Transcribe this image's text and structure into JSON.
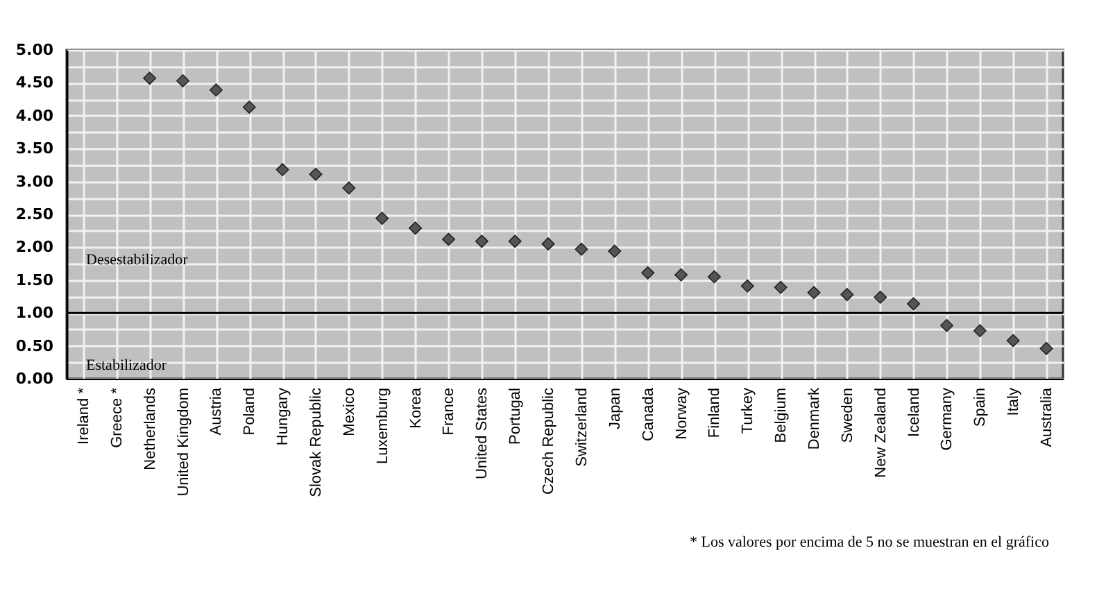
{
  "chart_data": {
    "type": "scatter",
    "marker": "diamond",
    "grid": true,
    "categories": [
      "Ireland *",
      "Greece *",
      "Netherlands",
      "United Kingdom",
      "Austria",
      "Poland",
      "Hungary",
      "Slovak Republic",
      "Mexico",
      "Luxemburg",
      "Korea",
      "France",
      "United States",
      "Portugal",
      "Czech Republic",
      "Switzerland",
      "Japan",
      "Canada",
      "Norway",
      "Finland",
      "Turkey",
      "Belgium",
      "Denmark",
      "Sweden",
      "New Zealand",
      "Iceland",
      "Germany",
      "Spain",
      "Italy",
      "Australia"
    ],
    "series": [
      {
        "color": "#555555",
        "values": [
          null,
          null,
          4.57,
          4.53,
          4.39,
          4.13,
          3.18,
          3.11,
          2.9,
          2.44,
          2.29,
          2.12,
          2.09,
          2.09,
          2.05,
          1.97,
          1.94,
          1.61,
          1.58,
          1.55,
          1.41,
          1.39,
          1.31,
          1.28,
          1.24,
          1.14,
          0.81,
          0.73,
          0.58,
          0.46
        ]
      }
    ],
    "ylim": [
      0,
      5
    ],
    "yticks": [
      {
        "value": 0,
        "label": "0.00"
      },
      {
        "value": 0.25,
        "label": null
      },
      {
        "value": 0.5,
        "label": "0.50"
      },
      {
        "value": 0.75,
        "label": null
      },
      {
        "value": 1,
        "label": "1.00"
      },
      {
        "value": 1.25,
        "label": null
      },
      {
        "value": 1.5,
        "label": "1.50"
      },
      {
        "value": 1.75,
        "label": null
      },
      {
        "value": 2,
        "label": "2.00"
      },
      {
        "value": 2.25,
        "label": null
      },
      {
        "value": 2.5,
        "label": "2.50"
      },
      {
        "value": 2.75,
        "label": null
      },
      {
        "value": 3,
        "label": "3.00"
      },
      {
        "value": 3.25,
        "label": null
      },
      {
        "value": 3.5,
        "label": "3.50"
      },
      {
        "value": 3.75,
        "label": null
      },
      {
        "value": 4,
        "label": "4.00"
      },
      {
        "value": 4.25,
        "label": null
      },
      {
        "value": 4.5,
        "label": "4.50"
      },
      {
        "value": 4.75,
        "label": null
      },
      {
        "value": 5,
        "label": "5.00"
      }
    ],
    "ref_lines": [
      {
        "axis": "y",
        "value": 1,
        "color": "#000000"
      }
    ],
    "annotations": [
      "Desestabilizador",
      "Estabilizador",
      "* Los valores por encima de 5 no se muestran en el gráfico"
    ]
  }
}
